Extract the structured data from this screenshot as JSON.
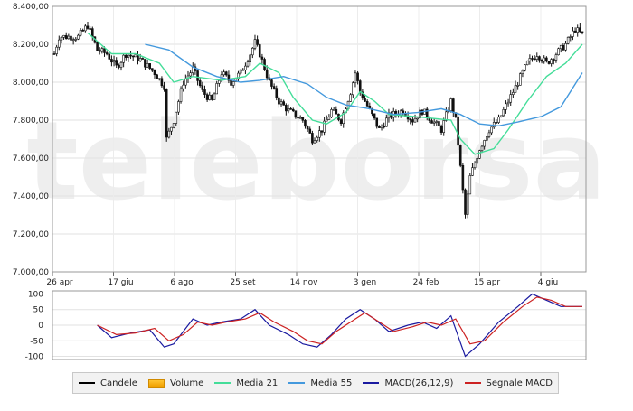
{
  "watermark": "teleborsa",
  "chart_data": [
    {
      "type": "line",
      "subtype": "candlestick",
      "y_ticks": [
        "8.400,00",
        "8.200,00",
        "8.000,00",
        "7.800,00",
        "7.600,00",
        "7.400,00",
        "7.200,00",
        "7.000,00"
      ],
      "ylim": [
        7000,
        8400
      ],
      "x_ticks": [
        "26 apr",
        "17 giu",
        "6 ago",
        "25 set",
        "14 nov",
        "3 gen",
        "24 feb",
        "15 apr",
        "4 giu"
      ],
      "grid": true,
      "price_keypoints": [
        [
          0,
          8150
        ],
        [
          2,
          8240
        ],
        [
          10,
          8240
        ],
        [
          14,
          8300
        ],
        [
          18,
          8170
        ],
        [
          22,
          8150
        ],
        [
          26,
          8080
        ],
        [
          30,
          8150
        ],
        [
          36,
          8120
        ],
        [
          42,
          8050
        ],
        [
          46,
          7980
        ],
        [
          47,
          7700
        ],
        [
          50,
          7800
        ],
        [
          54,
          8000
        ],
        [
          58,
          8070
        ],
        [
          62,
          7950
        ],
        [
          66,
          7900
        ],
        [
          70,
          8050
        ],
        [
          74,
          8000
        ],
        [
          78,
          8050
        ],
        [
          82,
          8150
        ],
        [
          84,
          8210
        ],
        [
          86,
          8150
        ],
        [
          90,
          8000
        ],
        [
          94,
          7900
        ],
        [
          98,
          7850
        ],
        [
          104,
          7800
        ],
        [
          108,
          7700
        ],
        [
          112,
          7750
        ],
        [
          116,
          7850
        ],
        [
          120,
          7800
        ],
        [
          124,
          7950
        ],
        [
          126,
          8050
        ],
        [
          128,
          7950
        ],
        [
          132,
          7850
        ],
        [
          136,
          7750
        ],
        [
          140,
          7820
        ],
        [
          146,
          7850
        ],
        [
          150,
          7800
        ],
        [
          154,
          7850
        ],
        [
          158,
          7800
        ],
        [
          162,
          7750
        ],
        [
          166,
          7900
        ],
        [
          168,
          7800
        ],
        [
          170,
          7550
        ],
        [
          172,
          7300
        ],
        [
          174,
          7500
        ],
        [
          178,
          7650
        ],
        [
          182,
          7750
        ],
        [
          186,
          7800
        ],
        [
          190,
          7900
        ],
        [
          194,
          8000
        ],
        [
          198,
          8100
        ],
        [
          202,
          8150
        ],
        [
          206,
          8100
        ],
        [
          210,
          8150
        ],
        [
          214,
          8200
        ],
        [
          218,
          8280
        ],
        [
          221,
          8250
        ]
      ],
      "price_samples": 222,
      "series": [
        {
          "name": "Media 21",
          "color": "#44dd99",
          "values": [
            [
              14,
              8260
            ],
            [
              24,
              8150
            ],
            [
              34,
              8150
            ],
            [
              44,
              8100
            ],
            [
              50,
              8000
            ],
            [
              58,
              8030
            ],
            [
              70,
              8010
            ],
            [
              80,
              8030
            ],
            [
              86,
              8100
            ],
            [
              94,
              8050
            ],
            [
              100,
              7920
            ],
            [
              108,
              7800
            ],
            [
              114,
              7780
            ],
            [
              122,
              7840
            ],
            [
              128,
              7950
            ],
            [
              134,
              7900
            ],
            [
              140,
              7830
            ],
            [
              150,
              7820
            ],
            [
              158,
              7810
            ],
            [
              166,
              7800
            ],
            [
              170,
              7700
            ],
            [
              176,
              7620
            ],
            [
              184,
              7650
            ],
            [
              190,
              7750
            ],
            [
              198,
              7900
            ],
            [
              206,
              8030
            ],
            [
              214,
              8100
            ],
            [
              221,
              8200
            ]
          ]
        },
        {
          "name": "Media 55",
          "color": "#4499dd",
          "values": [
            [
              38,
              8200
            ],
            [
              48,
              8170
            ],
            [
              58,
              8080
            ],
            [
              68,
              8030
            ],
            [
              78,
              8000
            ],
            [
              86,
              8010
            ],
            [
              96,
              8030
            ],
            [
              106,
              7990
            ],
            [
              114,
              7920
            ],
            [
              122,
              7880
            ],
            [
              132,
              7860
            ],
            [
              142,
              7830
            ],
            [
              152,
              7840
            ],
            [
              162,
              7860
            ],
            [
              170,
              7830
            ],
            [
              178,
              7780
            ],
            [
              186,
              7770
            ],
            [
              194,
              7790
            ],
            [
              204,
              7820
            ],
            [
              212,
              7870
            ],
            [
              221,
              8050
            ]
          ]
        }
      ]
    },
    {
      "type": "line",
      "y_ticks": [
        "100",
        "50",
        "0",
        "-50",
        "-100"
      ],
      "ylim": [
        -110,
        110
      ],
      "grid": true,
      "series": [
        {
          "name": "MACD(26,12,9)",
          "color": "#1a1aa0",
          "values": [
            [
              18,
              0
            ],
            [
              24,
              -40
            ],
            [
              32,
              -25
            ],
            [
              40,
              -15
            ],
            [
              46,
              -70
            ],
            [
              50,
              -60
            ],
            [
              58,
              20
            ],
            [
              64,
              0
            ],
            [
              70,
              10
            ],
            [
              78,
              20
            ],
            [
              84,
              50
            ],
            [
              90,
              0
            ],
            [
              98,
              -30
            ],
            [
              104,
              -60
            ],
            [
              110,
              -70
            ],
            [
              116,
              -30
            ],
            [
              122,
              20
            ],
            [
              128,
              50
            ],
            [
              134,
              20
            ],
            [
              140,
              -20
            ],
            [
              148,
              0
            ],
            [
              154,
              10
            ],
            [
              160,
              -10
            ],
            [
              166,
              30
            ],
            [
              172,
              -100
            ],
            [
              178,
              -60
            ],
            [
              186,
              10
            ],
            [
              194,
              60
            ],
            [
              200,
              100
            ],
            [
              206,
              80
            ],
            [
              212,
              60
            ],
            [
              221,
              60
            ]
          ]
        },
        {
          "name": "Segnale MACD",
          "color": "#cc2222",
          "values": [
            [
              18,
              0
            ],
            [
              26,
              -30
            ],
            [
              34,
              -25
            ],
            [
              42,
              -10
            ],
            [
              48,
              -50
            ],
            [
              54,
              -30
            ],
            [
              60,
              10
            ],
            [
              66,
              0
            ],
            [
              72,
              10
            ],
            [
              80,
              20
            ],
            [
              86,
              40
            ],
            [
              92,
              10
            ],
            [
              100,
              -20
            ],
            [
              106,
              -50
            ],
            [
              112,
              -60
            ],
            [
              118,
              -20
            ],
            [
              124,
              10
            ],
            [
              130,
              40
            ],
            [
              136,
              10
            ],
            [
              142,
              -20
            ],
            [
              150,
              -5
            ],
            [
              156,
              10
            ],
            [
              162,
              0
            ],
            [
              168,
              20
            ],
            [
              174,
              -60
            ],
            [
              180,
              -50
            ],
            [
              188,
              10
            ],
            [
              196,
              60
            ],
            [
              202,
              90
            ],
            [
              208,
              80
            ],
            [
              214,
              60
            ],
            [
              221,
              60
            ]
          ]
        }
      ]
    }
  ],
  "legend": {
    "candles": {
      "label": "Candele",
      "color": "#000000"
    },
    "volume": {
      "label": "Volume",
      "color": "#ffb000"
    },
    "ma21": {
      "label": "Media 21",
      "color": "#44dd99"
    },
    "ma55": {
      "label": "Media 55",
      "color": "#4499dd"
    },
    "macd": {
      "label": "MACD(26,12,9)",
      "color": "#1a1aa0"
    },
    "signal": {
      "label": "Segnale MACD",
      "color": "#cc2222"
    }
  }
}
